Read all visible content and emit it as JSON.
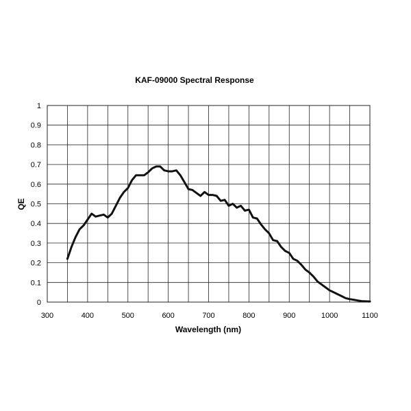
{
  "chart_data": {
    "type": "line",
    "title": "KAF-09000 Spectral Response",
    "xlabel": "Wavelength (nm)",
    "ylabel": "QE",
    "xlim": [
      300,
      1100
    ],
    "ylim": [
      0,
      1
    ],
    "x_ticks": [
      "300",
      "400",
      "500",
      "600",
      "700",
      "800",
      "900",
      "1000",
      "1100"
    ],
    "y_ticks": [
      "0",
      "0.1",
      "0.2",
      "0.3",
      "0.4",
      "0.5",
      "0.6",
      "0.7",
      "0.8",
      "0.9",
      "1"
    ],
    "x_gridlines": [
      350,
      400,
      450,
      500,
      550,
      600,
      650,
      700,
      750,
      800,
      850,
      900,
      950,
      1000,
      1050
    ],
    "y_gridlines": [
      0.1,
      0.2,
      0.3,
      0.4,
      0.5,
      0.6,
      0.7,
      0.8,
      0.9
    ],
    "grid": true,
    "legend": "none",
    "series": [
      {
        "color": "#111111",
        "x": [
          350,
          360,
          370,
          380,
          390,
          400,
          410,
          420,
          430,
          440,
          450,
          460,
          470,
          480,
          490,
          500,
          510,
          520,
          530,
          540,
          550,
          560,
          570,
          580,
          590,
          600,
          610,
          620,
          630,
          640,
          650,
          660,
          670,
          680,
          690,
          700,
          710,
          720,
          730,
          740,
          750,
          760,
          770,
          780,
          790,
          800,
          810,
          820,
          830,
          840,
          850,
          860,
          870,
          880,
          890,
          900,
          910,
          920,
          930,
          940,
          950,
          960,
          970,
          980,
          990,
          1000,
          1010,
          1020,
          1030,
          1040,
          1050,
          1060,
          1070,
          1080,
          1090,
          1100
        ],
        "y": [
          0.22,
          0.28,
          0.33,
          0.37,
          0.39,
          0.42,
          0.45,
          0.435,
          0.44,
          0.445,
          0.43,
          0.45,
          0.49,
          0.53,
          0.56,
          0.58,
          0.62,
          0.645,
          0.645,
          0.645,
          0.66,
          0.68,
          0.69,
          0.69,
          0.67,
          0.665,
          0.665,
          0.67,
          0.645,
          0.61,
          0.575,
          0.57,
          0.555,
          0.54,
          0.56,
          0.545,
          0.545,
          0.54,
          0.515,
          0.52,
          0.49,
          0.5,
          0.48,
          0.49,
          0.465,
          0.47,
          0.43,
          0.425,
          0.395,
          0.37,
          0.35,
          0.315,
          0.31,
          0.28,
          0.26,
          0.25,
          0.22,
          0.21,
          0.19,
          0.165,
          0.15,
          0.13,
          0.105,
          0.09,
          0.075,
          0.06,
          0.05,
          0.04,
          0.03,
          0.02,
          0.015,
          0.012,
          0.008,
          0.005,
          0.004,
          0.003
        ]
      }
    ]
  }
}
